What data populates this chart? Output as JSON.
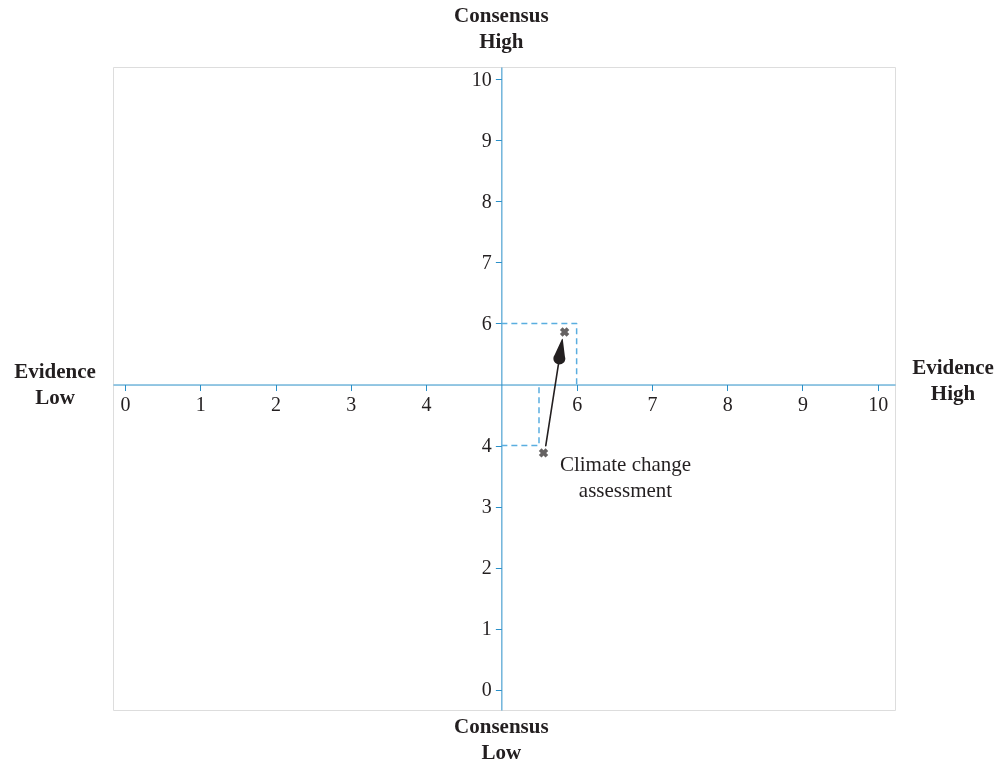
{
  "chart_data": {
    "type": "scatter",
    "xlim": [
      -0.16,
      10.23
    ],
    "ylim": [
      -0.33,
      10.2
    ],
    "xticks": [
      0,
      1,
      2,
      3,
      4,
      6,
      7,
      8,
      9,
      10
    ],
    "yticks": [
      0,
      1,
      2,
      3,
      4,
      6,
      7,
      8,
      9,
      10
    ],
    "grid": false,
    "series": [
      {
        "type": "line",
        "line_style": "dashed",
        "marker": "none",
        "color": "#5aaee0",
        "x": [
          5,
          6,
          6
        ],
        "values": [
          6,
          6,
          5
        ]
      },
      {
        "type": "line",
        "line_style": "dashed",
        "marker": "none",
        "color": "#5aaee0",
        "x": [
          5,
          5.5,
          5.5
        ],
        "values": [
          4,
          4,
          5
        ]
      },
      {
        "marker": "cross",
        "color": "#231f20",
        "x": [
          5.84,
          5.56
        ],
        "values": [
          5.86,
          3.88
        ]
      }
    ],
    "annotations": [
      "Consensus High",
      "Consensus Low",
      "Evidence Low",
      "Evidence High",
      "Climate change assessment"
    ]
  }
}
